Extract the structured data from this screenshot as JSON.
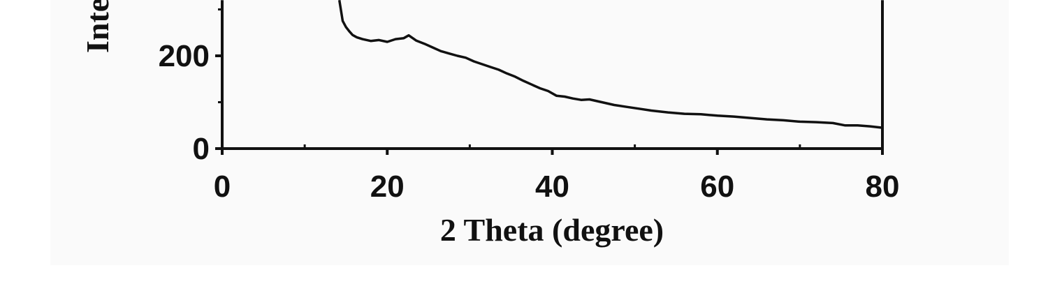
{
  "chart_data": {
    "type": "line",
    "xlabel": "2 Theta (degree)",
    "ylabel": "Intensity",
    "xlim": [
      0,
      80
    ],
    "xticks": [
      0,
      20,
      40,
      60,
      80
    ],
    "xminorticks": [
      10,
      30,
      50,
      70
    ],
    "ylim": [
      0,
      320
    ],
    "yticks": [
      0,
      200
    ],
    "yminorticks": [
      100,
      300
    ],
    "series": [
      {
        "color": "#111111",
        "x": [
          14.2,
          14.6,
          15.0,
          15.4,
          15.8,
          16.3,
          17.0,
          18.0,
          19.0,
          20.0,
          21.0,
          22.0,
          22.6,
          23.5,
          24.5,
          25.5,
          26.5,
          27.5,
          28.5,
          29.5,
          30.5,
          31.5,
          32.5,
          33.5,
          34.5,
          35.5,
          36.5,
          37.5,
          38.5,
          39.5,
          40.5,
          41.5,
          42.5,
          43.5,
          44.5,
          46.0,
          47.5,
          49.0,
          50.5,
          52.0,
          54.0,
          56.0,
          58.0,
          60.0,
          62.0,
          64.0,
          66.0,
          68.0,
          70.0,
          72.0,
          74.0,
          75.5,
          77.0,
          78.5,
          80.0
        ],
        "values": [
          320,
          275,
          262,
          253,
          245,
          240,
          236,
          232,
          234,
          230,
          236,
          238,
          244,
          233,
          226,
          218,
          210,
          205,
          200,
          196,
          188,
          182,
          176,
          170,
          162,
          155,
          146,
          138,
          130,
          124,
          114,
          112,
          108,
          105,
          106,
          100,
          94,
          90,
          86,
          82,
          78,
          75,
          74,
          71,
          69,
          66,
          63,
          61,
          58,
          57,
          55,
          50,
          50,
          48,
          45
        ]
      }
    ],
    "background": "#fafafa"
  }
}
